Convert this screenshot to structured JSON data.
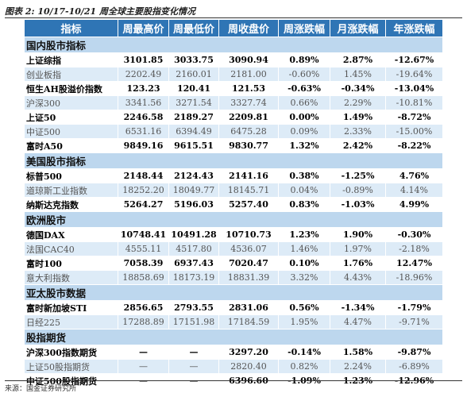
{
  "title": "图表 2: 10/17-10/21 周全球主要股指变化情况",
  "table": {
    "header": [
      "指标",
      "周最高价",
      "周最低价",
      "周收盘价",
      "周涨跌幅",
      "月涨跌幅",
      "年涨跌幅"
    ],
    "sections": [
      {
        "title": "国内股市指标",
        "rows": [
          {
            "bold": true,
            "cells": [
              "上证综指",
              "3101.85",
              "3033.75",
              "3090.94",
              "0.89%",
              "2.87%",
              "-12.67%"
            ]
          },
          {
            "bold": false,
            "cells": [
              "创业板指",
              "2202.49",
              "2160.01",
              "2181.00",
              "-0.60%",
              "1.45%",
              "-19.64%"
            ]
          },
          {
            "bold": true,
            "cells": [
              "恒生AH股溢价指数",
              "123.23",
              "120.41",
              "121.53",
              "-0.63%",
              "-0.34%",
              "-13.04%"
            ]
          },
          {
            "bold": false,
            "cells": [
              "沪深300",
              "3341.56",
              "3271.54",
              "3327.74",
              "0.66%",
              "2.29%",
              "-10.81%"
            ]
          },
          {
            "bold": true,
            "cells": [
              "上证50",
              "2246.58",
              "2189.27",
              "2209.81",
              "0.00%",
              "1.49%",
              "-8.72%"
            ]
          },
          {
            "bold": false,
            "cells": [
              "中证500",
              "6531.16",
              "6394.49",
              "6475.28",
              "0.09%",
              "2.33%",
              "-15.00%"
            ]
          },
          {
            "bold": true,
            "cells": [
              "富时A50",
              "9849.16",
              "9615.51",
              "9830.77",
              "1.32%",
              "2.42%",
              "-8.22%"
            ]
          }
        ]
      },
      {
        "title": "美国股市指标",
        "rows": [
          {
            "bold": true,
            "cells": [
              "标普500",
              "2148.44",
              "2124.43",
              "2141.16",
              "0.38%",
              "-1.25%",
              "4.76%"
            ]
          },
          {
            "bold": false,
            "cells": [
              "道琼斯工业指数",
              "18252.20",
              "18049.77",
              "18145.71",
              "0.04%",
              "-0.89%",
              "4.14%"
            ]
          },
          {
            "bold": true,
            "cells": [
              "纳斯达克指数",
              "5264.27",
              "5196.03",
              "5257.40",
              "0.83%",
              "-1.03%",
              "4.99%"
            ]
          }
        ]
      },
      {
        "title": "欧洲股市",
        "rows": [
          {
            "bold": true,
            "cells": [
              "德国DAX",
              "10748.41",
              "10491.28",
              "10710.73",
              "1.23%",
              "1.90%",
              "-0.30%"
            ]
          },
          {
            "bold": false,
            "cells": [
              "法国CAC40",
              "4555.11",
              "4517.80",
              "4536.07",
              "1.46%",
              "1.97%",
              "-2.18%"
            ]
          },
          {
            "bold": true,
            "cells": [
              "富时100",
              "7058.39",
              "6937.43",
              "7020.47",
              "0.10%",
              "1.76%",
              "12.47%"
            ]
          },
          {
            "bold": false,
            "cells": [
              "意大利指数",
              "18858.69",
              "18173.19",
              "18831.39",
              "3.32%",
              "4.43%",
              "-18.96%"
            ]
          }
        ]
      },
      {
        "title": "亚太股市数据",
        "rows": [
          {
            "bold": true,
            "cells": [
              "富时新加坡STI",
              "2856.65",
              "2793.55",
              "2831.06",
              "0.56%",
              "-1.34%",
              "-1.79%"
            ]
          },
          {
            "bold": false,
            "cells": [
              "日经225",
              "17288.89",
              "17151.98",
              "17184.59",
              "1.95%",
              "4.47%",
              "-9.71%"
            ]
          }
        ]
      },
      {
        "title": "股指期货",
        "rows": [
          {
            "bold": true,
            "cells": [
              "沪深300指数期货",
              "—",
              "—",
              "3297.20",
              "-0.14%",
              "1.58%",
              "-9.87%"
            ]
          },
          {
            "bold": false,
            "cells": [
              "上证50股指期货",
              "—",
              "—",
              "2820.40",
              "0.82%",
              "2.24%",
              "-6.89%"
            ]
          },
          {
            "bold": true,
            "cells": [
              "中证500股指期货",
              "—",
              "—",
              "6396.60",
              "-1.09%",
              "1.23%",
              "-12.96%"
            ]
          }
        ]
      }
    ]
  },
  "source": "来源：国金证券研究所"
}
